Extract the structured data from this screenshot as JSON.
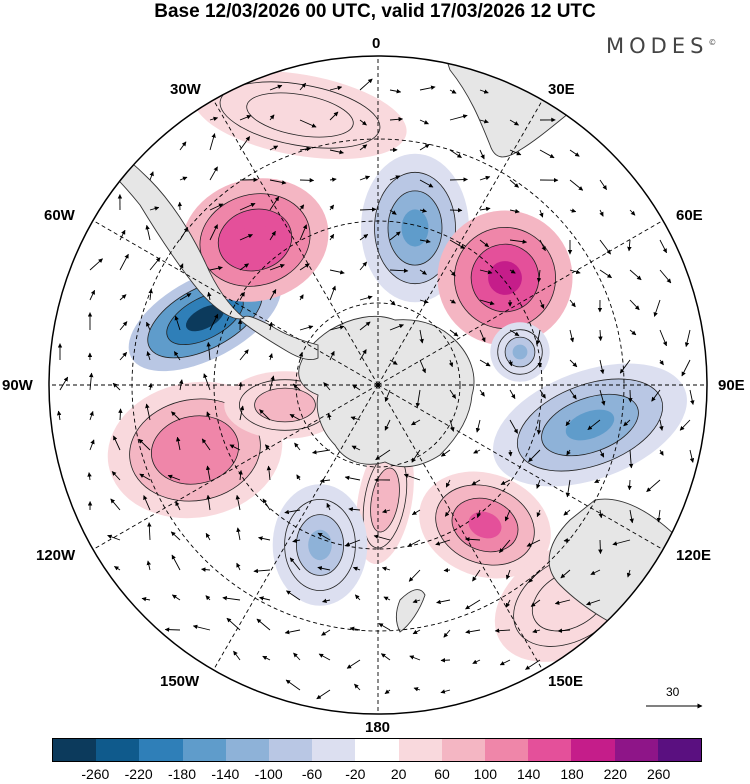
{
  "header": {
    "title": "Base 12/03/2026 00 UTC, valid 17/03/2026 12 UTC",
    "brand": "MODES",
    "brand_mark": "©"
  },
  "map": {
    "projection": "south-polar-stereographic",
    "longitude_labels": {
      "top": "0",
      "top_right": "30E",
      "right_upper": "60E",
      "right": "90E",
      "right_lower": "120E",
      "bottom_right": "150E",
      "bottom": "180",
      "bottom_left": "150W",
      "left_lower": "120W",
      "left": "90W",
      "left_upper": "60W",
      "top_left": "30W"
    },
    "reference_vector": {
      "label": "30"
    },
    "anomaly_blobs": [
      {
        "name": "blob-neg-60w",
        "value": -260
      },
      {
        "name": "blob-pos-45w",
        "value": 180
      },
      {
        "name": "blob-neg-10e",
        "value": -140
      },
      {
        "name": "blob-pos-50e",
        "value": 200
      },
      {
        "name": "blob-neg-75e",
        "value": -100
      },
      {
        "name": "blob-neg-95e",
        "value": -140
      },
      {
        "name": "blob-pos-135e",
        "value": 160
      },
      {
        "name": "blob-pos-160e",
        "value": 60
      },
      {
        "name": "blob-pos-170e",
        "value": 100
      },
      {
        "name": "blob-neg-155w",
        "value": -100
      },
      {
        "name": "blob-pos-105w",
        "value": 140
      },
      {
        "name": "blob-pos-80w",
        "value": 100
      },
      {
        "name": "blob-pos-15w",
        "value": 60
      }
    ],
    "colors": {
      "land": "#e6e6e6",
      "coast": "#333333",
      "grid": "#000000"
    }
  },
  "colorbar": {
    "ticks": [
      "-260",
      "-220",
      "-180",
      "-140",
      "-100",
      "-60",
      "-20",
      "20",
      "60",
      "100",
      "140",
      "180",
      "220",
      "260"
    ],
    "colors": [
      "#0c3a5c",
      "#0f5a8c",
      "#2f7fb8",
      "#5f9ccb",
      "#8eb2d8",
      "#b9c7e4",
      "#dcdff0",
      "#ffffff",
      "#f9d9dd",
      "#f4b6c3",
      "#ef86a9",
      "#e4509a",
      "#c51d8a",
      "#8e1588",
      "#5a1080"
    ]
  }
}
